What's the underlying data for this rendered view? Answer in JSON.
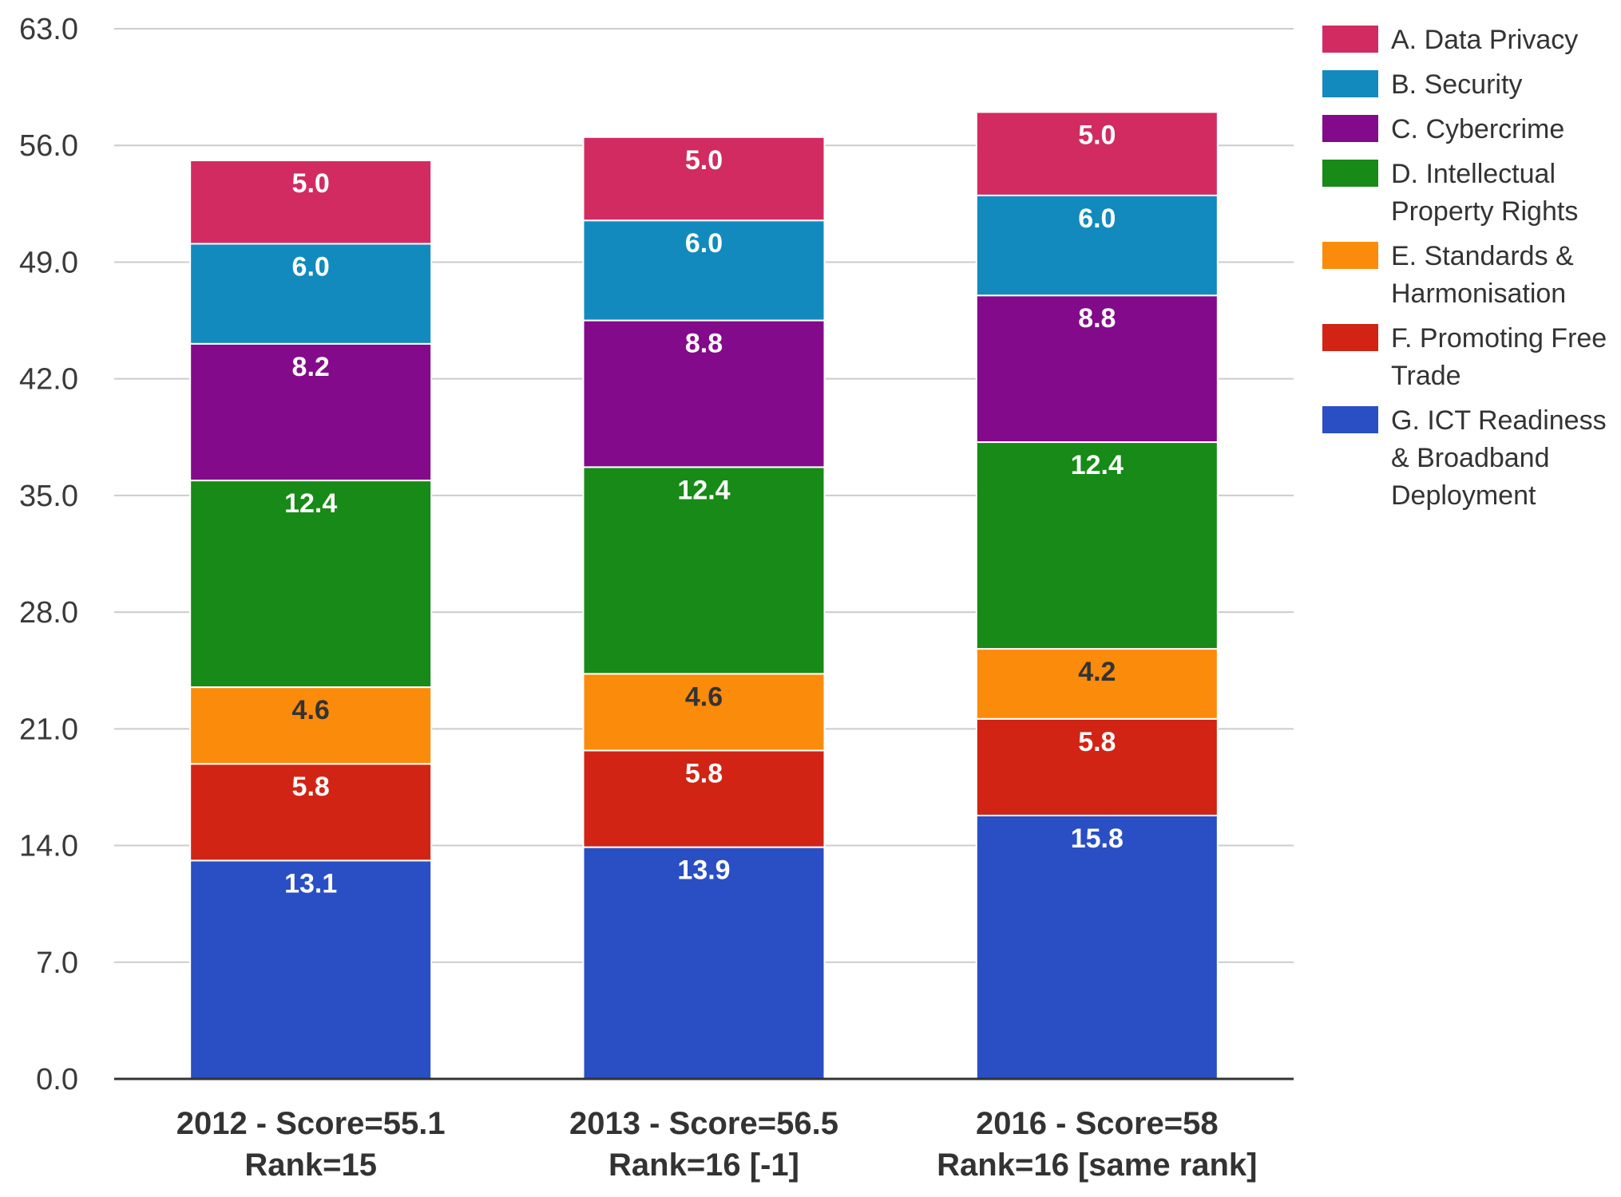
{
  "chart_data": {
    "type": "bar",
    "stacked": true,
    "title": "",
    "xlabel": "",
    "ylabel": "",
    "ylim": [
      0,
      63
    ],
    "yticks": [
      "0.0",
      "7.0",
      "14.0",
      "21.0",
      "28.0",
      "35.0",
      "42.0",
      "49.0",
      "56.0",
      "63.0"
    ],
    "grid": true,
    "legend_position": "right",
    "categories": [
      [
        "2012 - Score=55.1",
        "Rank=15"
      ],
      [
        "2013 - Score=56.5",
        "Rank=16 [-1]"
      ],
      [
        "2016 - Score=58",
        "Rank=16 [same rank]"
      ]
    ],
    "series": [
      {
        "name": "G. ICT Readiness & Broadband Deployment",
        "legend_lines": [
          "G. ICT Readiness",
          "& Broadband",
          "Deployment"
        ],
        "color": "#2a4fc4",
        "label_color": "#ffffff",
        "values": [
          13.1,
          13.9,
          15.8
        ],
        "labels": [
          "13.1",
          "13.9",
          "15.8"
        ]
      },
      {
        "name": "F. Promoting Free Trade",
        "legend_lines": [
          "F. Promoting Free",
          "Trade"
        ],
        "color": "#d12414",
        "label_color": "#ffffff",
        "values": [
          5.8,
          5.8,
          5.8
        ],
        "labels": [
          "5.8",
          "5.8",
          "5.8"
        ]
      },
      {
        "name": "E. Standards & Harmonisation",
        "legend_lines": [
          "E. Standards &",
          "Harmonisation"
        ],
        "color": "#fb8b0b",
        "label_color": "#333333",
        "values": [
          4.6,
          4.6,
          4.2
        ],
        "labels": [
          "4.6",
          "4.6",
          "4.2"
        ]
      },
      {
        "name": "D. Intellectual Property Rights",
        "legend_lines": [
          "D. Intellectual",
          "Property Rights"
        ],
        "color": "#178a17",
        "label_color": "#ffffff",
        "values": [
          12.4,
          12.4,
          12.4
        ],
        "labels": [
          "12.4",
          "12.4",
          "12.4"
        ]
      },
      {
        "name": "C. Cybercrime",
        "legend_lines": [
          "C. Cybercrime"
        ],
        "color": "#830a8a",
        "label_color": "#ffffff",
        "values": [
          8.2,
          8.8,
          8.8
        ],
        "labels": [
          "8.2",
          "8.8",
          "8.8"
        ]
      },
      {
        "name": "B. Security",
        "legend_lines": [
          "B. Security"
        ],
        "color": "#128abe",
        "label_color": "#ffffff",
        "values": [
          6.0,
          6.0,
          6.0
        ],
        "labels": [
          "6.0",
          "6.0",
          "6.0"
        ]
      },
      {
        "name": "A. Data Privacy",
        "legend_lines": [
          "A. Data Privacy"
        ],
        "color": "#d12b62",
        "label_color": "#ffffff",
        "values": [
          5.0,
          5.0,
          5.0
        ],
        "labels": [
          "5.0",
          "5.0",
          "5.0"
        ]
      }
    ],
    "legend_order": [
      "A. Data Privacy",
      "B. Security",
      "C. Cybercrime",
      "D. Intellectual Property Rights",
      "E. Standards & Harmonisation",
      "F. Promoting Free Trade",
      "G. ICT Readiness & Broadband Deployment"
    ],
    "colors": {
      "grid": "#cccccc",
      "axis": "#333333"
    }
  }
}
